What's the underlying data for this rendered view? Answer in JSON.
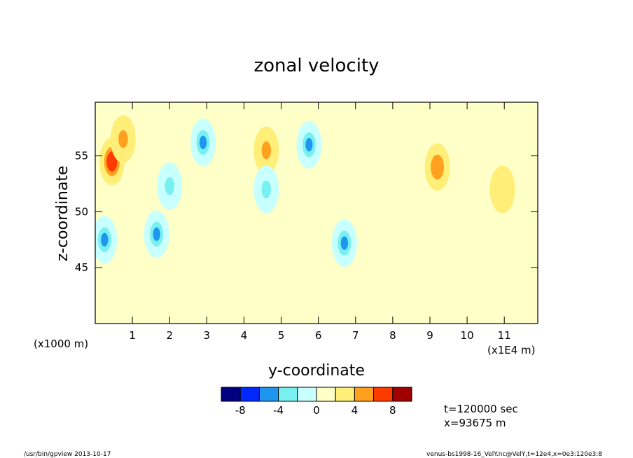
{
  "chart_data": {
    "type": "heatmap",
    "title": "zonal velocity",
    "xlabel": "y-coordinate",
    "ylabel": "z-coordinate",
    "x_scale_note": "(x1E4 m)",
    "y_scale_note": "(x1000 m)",
    "xlim": [
      0,
      11.9
    ],
    "ylim": [
      40,
      59.8
    ],
    "x_ticks": [
      1,
      2,
      3,
      4,
      5,
      6,
      7,
      8,
      9,
      10,
      11
    ],
    "y_ticks": [
      45,
      50,
      55
    ],
    "colorbar": {
      "colors": [
        "#000080",
        "#0028ff",
        "#1e96f0",
        "#78f0f0",
        "#c8ffff",
        "#ffffc8",
        "#ffee78",
        "#ffa01e",
        "#ff3c00",
        "#a00000"
      ],
      "boundaries": [
        -10,
        -8,
        -6,
        -4,
        -2,
        0,
        2,
        4,
        6,
        8,
        10
      ],
      "tick_labels": [
        "-8",
        "-4",
        "0",
        "4",
        "8"
      ]
    },
    "features": [
      {
        "y": 0.45,
        "z": 54.5,
        "value": 7
      },
      {
        "y": 0.75,
        "z": 56.5,
        "value": 4
      },
      {
        "y": 0.25,
        "z": 47.5,
        "value": -6
      },
      {
        "y": 1.65,
        "z": 48.0,
        "value": -6
      },
      {
        "y": 2.0,
        "z": 52.3,
        "value": -4
      },
      {
        "y": 2.9,
        "z": 56.2,
        "value": -5
      },
      {
        "y": 4.6,
        "z": 55.5,
        "value": 4
      },
      {
        "y": 4.6,
        "z": 52.0,
        "value": -4
      },
      {
        "y": 5.75,
        "z": 56.0,
        "value": -6
      },
      {
        "y": 6.7,
        "z": 47.2,
        "value": -6
      },
      {
        "y": 9.2,
        "z": 54.0,
        "value": 5
      },
      {
        "y": 10.95,
        "z": 52.0,
        "value": 3
      }
    ],
    "annotations": [
      "t=120000 sec",
      "x=93675 m"
    ]
  },
  "footer": {
    "left": "/usr/bin/gpview   2013-10-17",
    "right": "venus-bs1998-16_VelY.nc@VelY,t=12e4,x=0e3:120e3:8"
  }
}
